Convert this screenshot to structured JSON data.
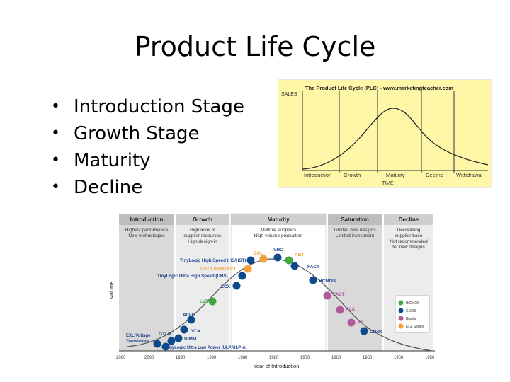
{
  "slide": {
    "title": "Product Life Cycle",
    "bullets": [
      "Introduction Stage",
      "Growth Stage",
      "Maturity",
      "Decline"
    ],
    "bullet_char": "•"
  },
  "plc_chart": {
    "heading": "The Product Life Cycle (PLC) - www.marketingteacher.com",
    "y_label": "SALES",
    "x_label": "TIME",
    "stages": [
      "Introduction",
      "Growth",
      "Maturity",
      "Decline",
      "Withdrawal"
    ],
    "background": "#fff7a8"
  },
  "tech_chart": {
    "y_label": "Volume",
    "x_label": "Year of Introduction",
    "x_ticks": [
      "2000",
      "2000",
      "1990",
      "1990",
      "1980",
      "1980",
      "1970",
      "1960",
      "1960",
      "1950",
      "1950"
    ],
    "stages": [
      {
        "name": "Introduction",
        "desc": [
          "Highest performance",
          "New technologies"
        ]
      },
      {
        "name": "Growth",
        "desc": [
          "High level of",
          "supplier resources",
          "High design-in"
        ]
      },
      {
        "name": "Maturity",
        "desc": [
          "Multiple suppliers",
          "High-volume production"
        ]
      },
      {
        "name": "Saturation",
        "desc": [
          "Limited new designs",
          "Limited investment"
        ]
      },
      {
        "name": "Decline",
        "desc": [
          "Decreasing",
          "supplier base",
          "Not recommended",
          "for new designs"
        ]
      }
    ],
    "labels": {
      "ecl": "ECL",
      "vhc": "VHC",
      "abt": "ABT",
      "fact": "FACT",
      "hcmos": "HCMOS",
      "fast": "FAST",
      "als": "ALS",
      "as": "AS",
      "cd4k": "CD4K",
      "lvt": "LVT",
      "alvc": "ALVC",
      "vcx": "VCX",
      "dimm": "DIMM",
      "gtlp": "GTLP",
      "lcx": "LCX",
      "bct": "10ECL/10KH BCT",
      "tinyhs": "TinyLogic High Speed (HS/HST)",
      "tinyuhs": "TinyLogic Ultra High Speed (UHS)",
      "tinyulp": "TinyLogic Ultra Low Power (ULP/ULP-A)",
      "exl1": "EXL Voltage",
      "exl2": "Translators"
    },
    "legend": [
      "BiCMOS",
      "CMOS",
      "Bipolar",
      "ECL Series"
    ],
    "colors": {
      "cmos": "#0d4a8c",
      "bicmos": "#3fa83f",
      "bipolar": "#b05a9a",
      "ecl": "#f2a13a",
      "band": "#d9d9d9",
      "curve": "#555555",
      "label": "#1b3f8f"
    }
  }
}
